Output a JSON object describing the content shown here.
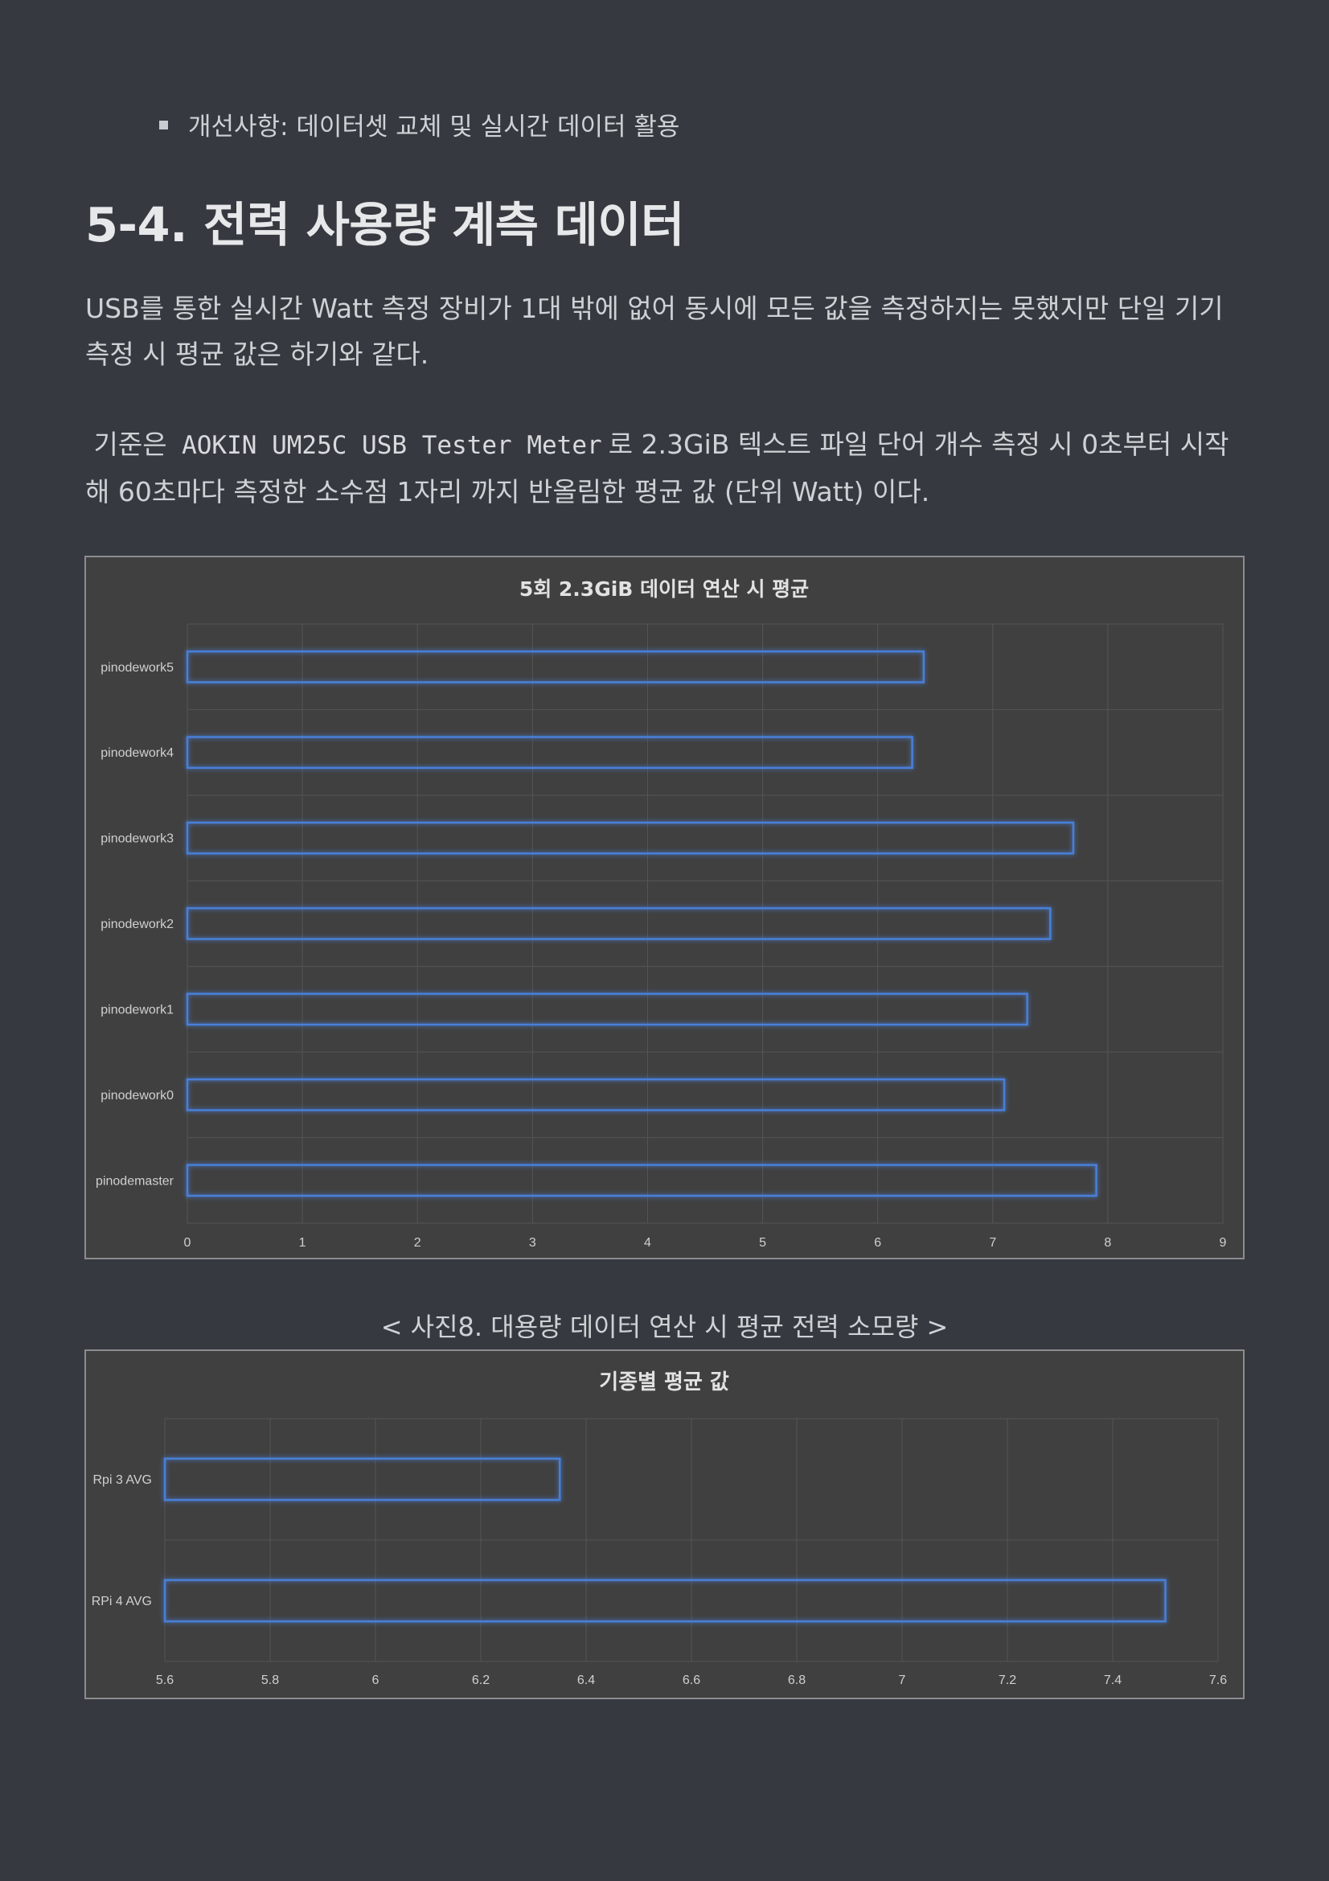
{
  "bullet_text": "개선사항: 데이터셋 교체 및 실시간 데이터 활용",
  "heading": "5-4. 전력 사용량 계측 데이터",
  "para1": "USB를 통한 실시간 Watt 측정 장비가 1대 밖에 없어 동시에 모든 값을 측정하지는 못했지만 단일 기기 측정 시 평균 값은 하기와 같다.",
  "para2": {
    "prefix": "기준은",
    "code": "AOKIN UM25C USB Tester Meter",
    "suffix": "로 2.3GiB 텍스트 파일 단어 개수 측정 시 0초부터 시작해 60초마다 측정한 소수점 1자리 까지 반올림한 평균 값 (단위 Watt) 이다."
  },
  "caption": "< 사진8. 대용량 데이터 연산 시 평균 전력 소모량 >",
  "colors": {
    "bar_outline": "#4a7fd8",
    "bar_glow": "#2f5fb8",
    "grid": "#555555",
    "plot_bg": "#404040"
  },
  "chart_data": [
    {
      "type": "bar",
      "orientation": "horizontal",
      "title": "5회 2.3GiB 데이터 연산 시 평균",
      "categories": [
        "pinodework5",
        "pinodework4",
        "pinodework3",
        "pinodework2",
        "pinodework1",
        "pinodework0",
        "pinodemaster"
      ],
      "values": [
        6.4,
        6.3,
        7.7,
        7.5,
        7.3,
        7.1,
        7.9
      ],
      "xlim": [
        0,
        9
      ],
      "xticks": [
        "0",
        "1",
        "2",
        "3",
        "4",
        "5",
        "6",
        "7",
        "8",
        "9"
      ],
      "xtick_values": [
        0,
        1,
        2,
        3,
        4,
        5,
        6,
        7,
        8,
        9
      ],
      "grid": true,
      "legend": "none"
    },
    {
      "type": "bar",
      "orientation": "horizontal",
      "title": "기종별 평균 값",
      "categories": [
        "Rpi 3 AVG",
        "RPi 4 AVG"
      ],
      "values": [
        6.35,
        7.5
      ],
      "xlim": [
        5.6,
        7.6
      ],
      "xticks": [
        "5.6",
        "5.8",
        "6",
        "6.2",
        "6.4",
        "6.6",
        "6.8",
        "7",
        "7.2",
        "7.4",
        "7.6"
      ],
      "xtick_values": [
        5.6,
        5.8,
        6.0,
        6.2,
        6.4,
        6.6,
        6.8,
        7.0,
        7.2,
        7.4,
        7.6
      ],
      "grid": true,
      "legend": "none"
    }
  ]
}
